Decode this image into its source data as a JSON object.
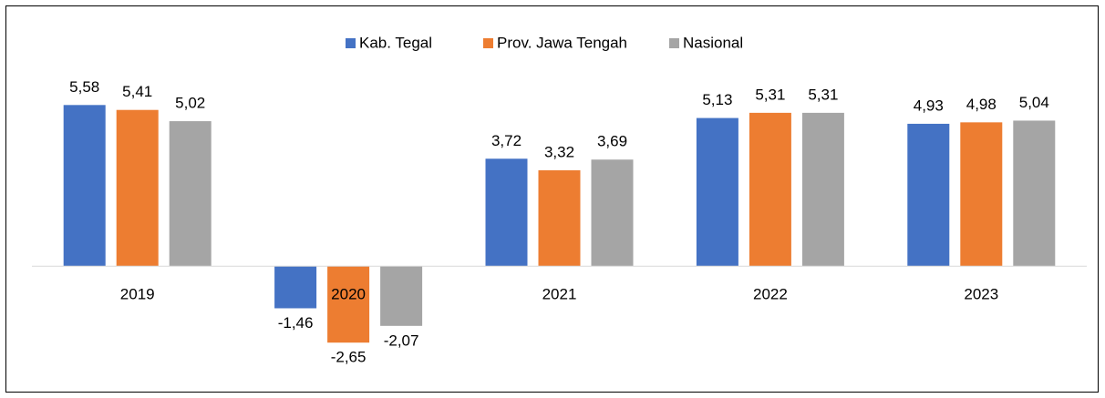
{
  "chart_data": {
    "type": "bar",
    "categories": [
      "2019",
      "2020",
      "2021",
      "2022",
      "2023"
    ],
    "series": [
      {
        "name": "Kab. Tegal",
        "color": "#4472c4",
        "values": [
          5.58,
          -1.46,
          3.72,
          5.13,
          4.93
        ],
        "value_labels": [
          "5,58",
          "-1,46",
          "3,72",
          "5,13",
          "4,93"
        ]
      },
      {
        "name": "Prov. Jawa Tengah",
        "color": "#ed7d31",
        "values": [
          5.41,
          -2.65,
          3.32,
          5.31,
          4.98
        ],
        "value_labels": [
          "5,41",
          "-2,65",
          "3,32",
          "5,31",
          "4,98"
        ]
      },
      {
        "name": "Nasional",
        "color": "#a5a5a5",
        "values": [
          5.02,
          -2.07,
          3.69,
          5.31,
          5.04
        ],
        "value_labels": [
          "5,02",
          "-2,07",
          "3,69",
          "5,31",
          "5,04"
        ]
      }
    ],
    "ylim": [
      -4,
      6
    ]
  }
}
